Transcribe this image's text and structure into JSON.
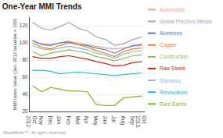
{
  "chart_data": {
    "type": "line",
    "title": "One-Year MMI Trends",
    "ylabel": "MMI Index Value (Jan. 2012 baseline = 100)",
    "annotations": [
      "MetalMiner™. All rights reserved."
    ],
    "categories": [
      "Oct\n2012",
      "Nov",
      "Dec",
      "Jan",
      "Feb",
      "Mar",
      "Apr",
      "May",
      "Jun",
      "Jul",
      "Aug",
      "Sep",
      "Oct\n2013"
    ],
    "series": [
      {
        "name": "Automotive",
        "color": "#f0a090",
        "values": [
          102,
          99,
          98,
          100,
          102,
          100,
          98,
          96,
          94,
          93,
          94,
          96,
          97
        ]
      },
      {
        "name": "Global Precious Metals",
        "color": "#b0a0b8",
        "values": [
          124,
          117,
          115,
          119,
          124,
          117,
          114,
          107,
          104,
          97,
          99,
          104,
          107
        ]
      },
      {
        "name": "Aluminum",
        "color": "#5080c0",
        "values": [
          103,
          98,
          97,
          100,
          101,
          98,
          97,
          94,
          92,
          88,
          93,
          97,
          98
        ]
      },
      {
        "name": "Copper",
        "color": "#e08030",
        "values": [
          100,
          95,
          93,
          97,
          100,
          98,
          95,
          91,
          88,
          84,
          90,
          93,
          94
        ]
      },
      {
        "name": "Construction",
        "color": "#90b860",
        "values": [
          90,
          85,
          88,
          90,
          92,
          90,
          88,
          84,
          82,
          79,
          82,
          85,
          86
        ]
      },
      {
        "name": "Raw Steels",
        "color": "#b03020",
        "values": [
          84,
          82,
          82,
          84,
          85,
          83,
          81,
          78,
          76,
          73,
          74,
          77,
          78
        ]
      },
      {
        "name": "Stainless",
        "color": "#90b8d8",
        "values": [
          97,
          93,
          92,
          94,
          96,
          94,
          92,
          88,
          86,
          82,
          87,
          90,
          91
        ]
      },
      {
        "name": "Renewables",
        "color": "#30b8c8",
        "values": [
          68,
          68,
          67,
          64,
          65,
          66,
          65,
          64,
          63,
          62,
          63,
          64,
          65
        ]
      },
      {
        "name": "Rare Earths",
        "color": "#80b830",
        "values": [
          50,
          43,
          48,
          46,
          44,
          44,
          43,
          28,
          27,
          27,
          36,
          37,
          38
        ]
      }
    ],
    "ylim": [
      20,
      130
    ],
    "yticks": [
      20,
      40,
      60,
      80,
      100,
      120
    ],
    "grid": true,
    "legend": "right"
  }
}
